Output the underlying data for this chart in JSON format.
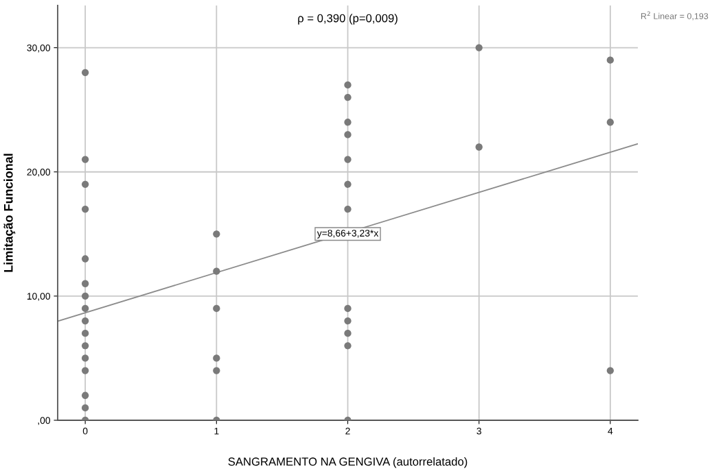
{
  "chart_data": {
    "type": "scatter",
    "xlabel": "SANGRAMENTO NA GENGIVA (autorrelatado)",
    "ylabel": "Limitação Funcional",
    "xlim": [
      -0.21,
      4.21
    ],
    "ylim": [
      0,
      33.4
    ],
    "xticks": [
      0,
      1,
      2,
      3,
      4
    ],
    "yticks": [
      {
        "value": 0,
        "label": ",00"
      },
      {
        "value": 10,
        "label": "10,00"
      },
      {
        "value": 20,
        "label": "20,00"
      },
      {
        "value": 30,
        "label": "30,00"
      }
    ],
    "grid": true,
    "marker": "circle",
    "series": [
      {
        "color": "#7a7a7a",
        "x": [
          0,
          0,
          0,
          0,
          0,
          0,
          0,
          0,
          0,
          0,
          0,
          0,
          0,
          0,
          0,
          0,
          1,
          1,
          1,
          1,
          1,
          1,
          2,
          2,
          2,
          2,
          2,
          2,
          2,
          2,
          2,
          2,
          2,
          2,
          3,
          3,
          4,
          4,
          4
        ],
        "values": [
          28,
          21,
          19,
          17,
          13,
          11,
          10,
          9,
          8,
          7,
          6,
          5,
          4,
          2,
          1,
          0,
          15,
          12,
          9,
          5,
          4,
          0,
          27,
          26,
          24,
          23,
          21,
          19,
          17,
          9,
          8,
          7,
          6,
          0,
          30,
          22,
          29,
          24,
          4
        ]
      },
      {
        "type": "line",
        "marker": "none",
        "color": "#8c8c8c",
        "x": [
          -0.21,
          4.21
        ],
        "values": [
          7.98,
          22.26
        ]
      }
    ],
    "annotations": [
      "ρ = 0,390 (p=0,009)",
      "R$^{2}$ Linear = 0,193",
      {
        "text": "y=8,66+3,23*x",
        "x": 2,
        "y": 15
      }
    ]
  }
}
